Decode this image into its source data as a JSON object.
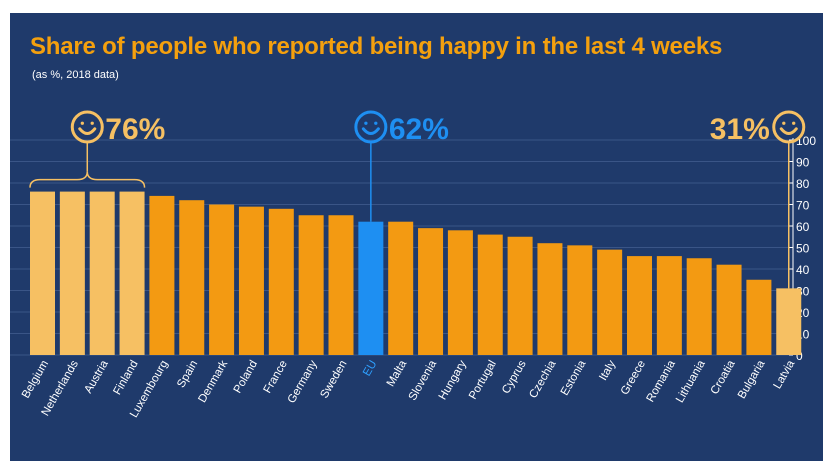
{
  "chart_data": {
    "type": "bar",
    "title": "Share of people who reported being happy in the last 4 weeks",
    "subtitle": "(as %, 2018 data)",
    "categories": [
      "Belgium",
      "Netherlands",
      "Austria",
      "Finland",
      "Luxembourg",
      "Spain",
      "Denmark",
      "Poland",
      "France",
      "Germany",
      "Sweden",
      "EU",
      "Malta",
      "Slovenia",
      "Hungary",
      "Portugal",
      "Cyprus",
      "Czechia",
      "Estonia",
      "Italy",
      "Greece",
      "Romania",
      "Lithuania",
      "Croatia",
      "Bulgaria",
      "Latvia"
    ],
    "values": [
      76,
      76,
      76,
      76,
      74,
      72,
      70,
      69,
      68,
      65,
      65,
      62,
      62,
      59,
      58,
      56,
      55,
      52,
      51,
      49,
      46,
      46,
      45,
      42,
      35,
      31
    ],
    "ylim": [
      0,
      100
    ],
    "yticks": [
      0,
      10,
      20,
      30,
      40,
      50,
      60,
      70,
      80,
      90,
      100
    ],
    "grid": true,
    "y_axis_side": "right",
    "colors": {
      "background": "#1f3a6b",
      "bar": "#f39a12",
      "highlight_top_bottom": "#f6c063",
      "eu": "#1e8ff2",
      "title": "#f4a00e",
      "grid": "#3a5587",
      "eu_label": "#2ea0ff"
    },
    "callouts": [
      {
        "icon": "smiley-icon",
        "value": "76%",
        "applies_to": [
          "Belgium",
          "Netherlands",
          "Austria",
          "Finland"
        ],
        "color": "#f6c063"
      },
      {
        "icon": "smiley-icon",
        "value": "62%",
        "applies_to": [
          "EU"
        ],
        "color": "#1e8ff2"
      },
      {
        "icon": "smiley-icon",
        "value": "31%",
        "applies_to": [
          "Latvia"
        ],
        "color": "#f6c063"
      }
    ]
  }
}
